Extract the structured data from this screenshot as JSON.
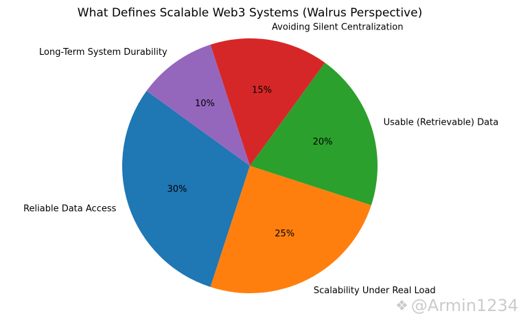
{
  "chart_data": {
    "type": "pie",
    "title": "What Defines Scalable Web3 Systems (Walrus Perspective)",
    "slices": [
      {
        "label": "Reliable Data Access",
        "value": 30,
        "percent_label": "30%",
        "color": "#1f77b4"
      },
      {
        "label": "Scalability Under Real Load",
        "value": 25,
        "percent_label": "25%",
        "color": "#ff7f0e"
      },
      {
        "label": "Usable (Retrievable) Data",
        "value": 20,
        "percent_label": "20%",
        "color": "#2ca02c"
      },
      {
        "label": "Avoiding Silent Centralization",
        "value": 15,
        "percent_label": "15%",
        "color": "#d62728"
      },
      {
        "label": "Long-Term System Durability",
        "value": 10,
        "percent_label": "10%",
        "color": "#9467bd"
      }
    ],
    "start_angle": 144,
    "direction": "counterclockwise",
    "legend": "none",
    "watermark": {
      "glyph": "❖",
      "text": "@Armin1234",
      "color": "#cbcbcb"
    }
  }
}
